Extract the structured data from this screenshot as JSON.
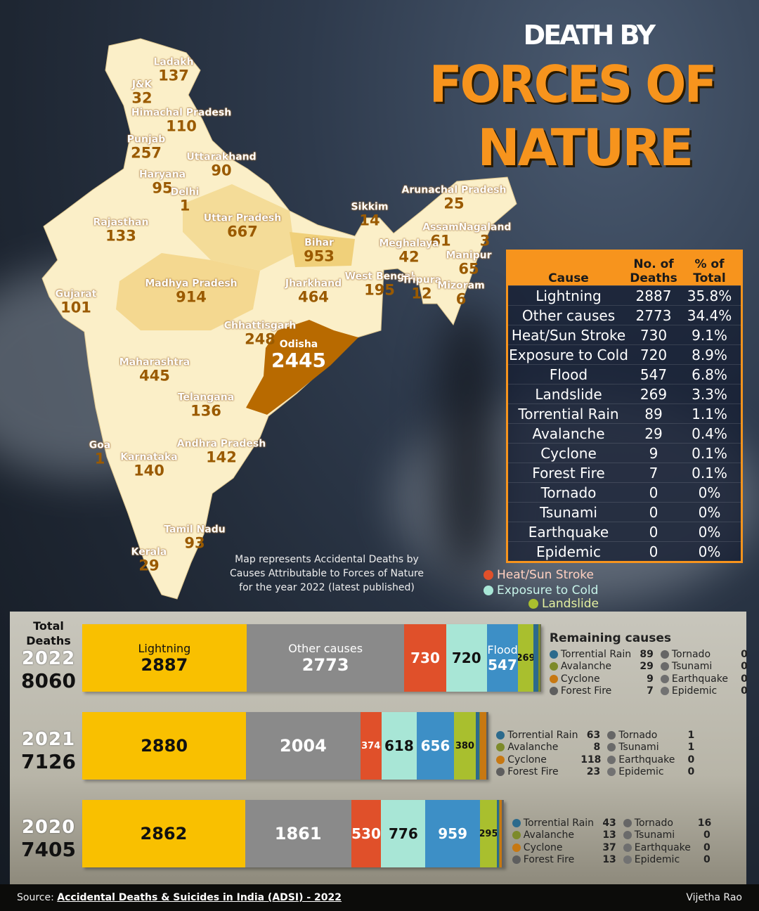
{
  "title": {
    "line1": "DEATH BY",
    "line2": "FORCES OF",
    "line3": "NATURE"
  },
  "map": {
    "caption": "Map represents Accidental Deaths by Causes Attributable to Forces of Nature for the year 2022 (latest published)",
    "states": [
      {
        "name": "Ladakh",
        "value": "137"
      },
      {
        "name": "J&K",
        "value": "32"
      },
      {
        "name": "Himachal Pradesh",
        "value": "110"
      },
      {
        "name": "Punjab",
        "value": "257"
      },
      {
        "name": "Uttarakhand",
        "value": "90"
      },
      {
        "name": "Haryana",
        "value": "95"
      },
      {
        "name": "Delhi",
        "value": "1"
      },
      {
        "name": "Rajasthan",
        "value": "133"
      },
      {
        "name": "Uttar Pradesh",
        "value": "667"
      },
      {
        "name": "Bihar",
        "value": "953"
      },
      {
        "name": "Sikkim",
        "value": "14"
      },
      {
        "name": "Arunachal Pradesh",
        "value": "25"
      },
      {
        "name": "Assam",
        "value": "61"
      },
      {
        "name": "Nagaland",
        "value": "3"
      },
      {
        "name": "Meghalaya",
        "value": "42"
      },
      {
        "name": "Manipur",
        "value": "65"
      },
      {
        "name": "West Bengal",
        "value": "195"
      },
      {
        "name": "Tripura",
        "value": "12"
      },
      {
        "name": "Mizoram",
        "value": "6"
      },
      {
        "name": "Gujarat",
        "value": "101"
      },
      {
        "name": "Madhya Pradesh",
        "value": "914"
      },
      {
        "name": "Jharkhand",
        "value": "464"
      },
      {
        "name": "Chhattisgarh",
        "value": "248"
      },
      {
        "name": "Odisha",
        "value": "2445"
      },
      {
        "name": "Maharashtra",
        "value": "445"
      },
      {
        "name": "Telangana",
        "value": "136"
      },
      {
        "name": "Goa",
        "value": "1"
      },
      {
        "name": "Karnataka",
        "value": "140"
      },
      {
        "name": "Andhra Pradesh",
        "value": "142"
      },
      {
        "name": "Tamil Nadu",
        "value": "93"
      },
      {
        "name": "Kerala",
        "value": "29"
      }
    ]
  },
  "table": {
    "headers": {
      "cause": "Cause",
      "deaths": "No. of Deaths",
      "pct": "% of Total"
    },
    "rows": [
      {
        "cause": "Lightning",
        "deaths": "2887",
        "pct": "35.8%"
      },
      {
        "cause": "Other causes",
        "deaths": "2773",
        "pct": "34.4%"
      },
      {
        "cause": "Heat/Sun Stroke",
        "deaths": "730",
        "pct": "9.1%"
      },
      {
        "cause": "Exposure to Cold",
        "deaths": "720",
        "pct": "8.9%"
      },
      {
        "cause": "Flood",
        "deaths": "547",
        "pct": "6.8%"
      },
      {
        "cause": "Landslide",
        "deaths": "269",
        "pct": "3.3%"
      },
      {
        "cause": "Torrential Rain",
        "deaths": "89",
        "pct": "1.1%"
      },
      {
        "cause": "Avalanche",
        "deaths": "29",
        "pct": "0.4%"
      },
      {
        "cause": "Cyclone",
        "deaths": "9",
        "pct": "0.1%"
      },
      {
        "cause": "Forest Fire",
        "deaths": "7",
        "pct": "0.1%"
      },
      {
        "cause": "Tornado",
        "deaths": "0",
        "pct": "0%"
      },
      {
        "cause": "Tsunami",
        "deaths": "0",
        "pct": "0%"
      },
      {
        "cause": "Earthquake",
        "deaths": "0",
        "pct": "0%"
      },
      {
        "cause": "Epidemic",
        "deaths": "0",
        "pct": "0%"
      }
    ]
  },
  "chart_data": {
    "type": "bar",
    "orientation": "horizontal-stacked",
    "total_label": "Total Deaths",
    "remaining_title": "Remaining causes",
    "callouts": [
      "Heat/Sun Stroke",
      "Exposure to Cold",
      "Landslide"
    ],
    "causes": [
      "Lightning",
      "Other causes",
      "Heat/Sun Stroke",
      "Exposure to Cold",
      "Flood",
      "Landslide",
      "Torrential Rain",
      "Avalanche",
      "Cyclone",
      "Forest Fire",
      "Tornado",
      "Tsunami",
      "Earthquake",
      "Epidemic"
    ],
    "colors": [
      "#f9c000",
      "#8a8a8a",
      "#e0502a",
      "#a8e6d6",
      "#3d8fc6",
      "#a9bf2e",
      "#2c6a8c",
      "#7d8a2a",
      "#c77812",
      "#5e5e5e",
      "#666666",
      "#6a6a6a",
      "#6e6e6e",
      "#727272"
    ],
    "series": [
      {
        "year": "2022",
        "total": "8060",
        "values": [
          2887,
          2773,
          730,
          720,
          547,
          269,
          89,
          29,
          9,
          7,
          0,
          0,
          0,
          0
        ]
      },
      {
        "year": "2021",
        "total": "7126",
        "values": [
          2880,
          2004,
          374,
          618,
          656,
          380,
          63,
          8,
          118,
          23,
          1,
          1,
          0,
          0
        ]
      },
      {
        "year": "2020",
        "total": "7405",
        "values": [
          2862,
          1861,
          530,
          776,
          959,
          295,
          43,
          13,
          37,
          13,
          16,
          0,
          0,
          0
        ]
      }
    ]
  },
  "footer": {
    "source_label": "Source:",
    "source_link": "Accidental Deaths & Suicides in India (ADSI) - 2022",
    "author": "Vijetha Rao"
  }
}
